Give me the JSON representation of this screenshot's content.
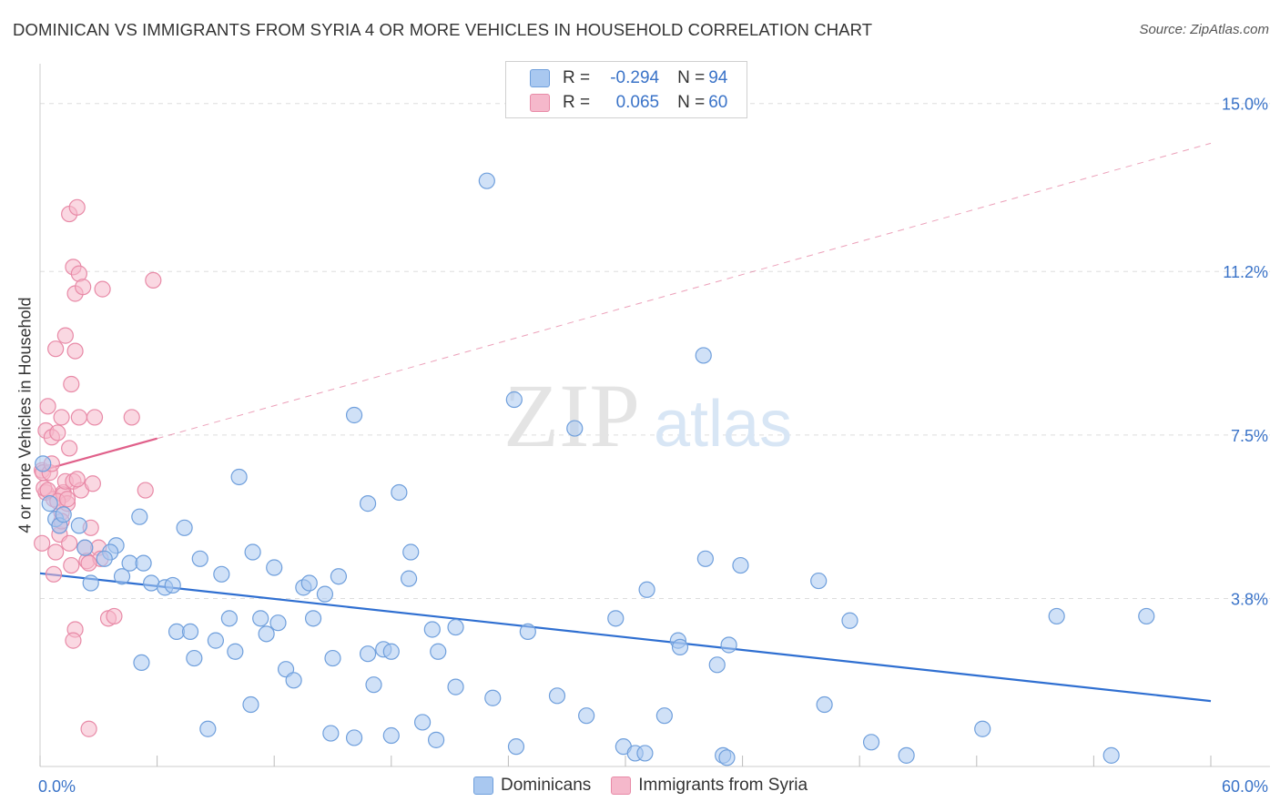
{
  "title": "DOMINICAN VS IMMIGRANTS FROM SYRIA 4 OR MORE VEHICLES IN HOUSEHOLD CORRELATION CHART",
  "source": "Source: ZipAtlas.com",
  "watermark": {
    "zip": "ZIP",
    "atlas": "atlas"
  },
  "legend_box": [
    {
      "r_label": "R =",
      "r_value": "-0.294",
      "n_label": "N =",
      "n_value": "94",
      "color": "#a9c8f0"
    },
    {
      "r_label": "R =",
      "r_value": "0.065",
      "n_label": "N =",
      "n_value": "60",
      "color": "#f5b8cb"
    }
  ],
  "bottom_legend": [
    {
      "label": "Dominicans",
      "color": "#a9c8f0"
    },
    {
      "label": "Immigrants from Syria",
      "color": "#f5b8cb"
    }
  ],
  "colors": {
    "blue_fill": "#a9c8f0",
    "blue_stroke": "#6f9fdc",
    "blue_line": "#2f6fd1",
    "pink_fill": "#f5b8cb",
    "pink_stroke": "#e88aa7",
    "pink_line": "#e0608a",
    "grid": "#dddddd",
    "axis_text": "#3a73c8"
  },
  "chart_data": {
    "type": "scatter",
    "title": "DOMINICAN VS IMMIGRANTS FROM SYRIA 4 OR MORE VEHICLES IN HOUSEHOLD CORRELATION CHART",
    "xlabel": "",
    "ylabel": "4 or more Vehicles in Household",
    "xlim": [
      0,
      60
    ],
    "ylim": [
      0,
      15.9
    ],
    "x_tick_labels": [
      "0.0%",
      "60.0%"
    ],
    "y_ticks": [
      3.8,
      7.5,
      11.2,
      15.0
    ],
    "y_tick_labels": [
      "3.8%",
      "7.5%",
      "11.2%",
      "15.0%"
    ],
    "grid": "horizontal dashed",
    "legend_placement": "top-center",
    "series": [
      {
        "name": "Dominicans",
        "r": -0.294,
        "n": 94,
        "trend": {
          "x": [
            0,
            60
          ],
          "y": [
            4.37,
            1.48
          ],
          "style": "solid"
        },
        "points": [
          [
            0.15,
            6.85
          ],
          [
            0.5,
            5.95
          ],
          [
            0.8,
            5.6
          ],
          [
            1.0,
            5.45
          ],
          [
            2.0,
            5.45
          ],
          [
            1.2,
            5.7
          ],
          [
            2.3,
            4.95
          ],
          [
            3.9,
            5.0
          ],
          [
            3.6,
            4.85
          ],
          [
            3.3,
            4.7
          ],
          [
            2.6,
            4.15
          ],
          [
            4.2,
            4.3
          ],
          [
            4.6,
            4.6
          ],
          [
            5.3,
            4.6
          ],
          [
            5.1,
            5.65
          ],
          [
            5.7,
            4.15
          ],
          [
            6.4,
            4.05
          ],
          [
            6.8,
            4.1
          ],
          [
            7.4,
            5.4
          ],
          [
            8.2,
            4.7
          ],
          [
            9.3,
            4.35
          ],
          [
            10.2,
            6.55
          ],
          [
            10.9,
            4.85
          ],
          [
            12.0,
            4.5
          ],
          [
            13.5,
            4.05
          ],
          [
            13.8,
            4.15
          ],
          [
            14.6,
            3.9
          ],
          [
            15.3,
            4.3
          ],
          [
            16.1,
            7.95
          ],
          [
            16.8,
            5.95
          ],
          [
            18.4,
            6.2
          ],
          [
            19.0,
            4.85
          ],
          [
            18.9,
            4.25
          ],
          [
            22.9,
            13.25
          ],
          [
            24.3,
            8.3
          ],
          [
            27.4,
            7.65
          ],
          [
            31.1,
            4.0
          ],
          [
            34.0,
            9.3
          ],
          [
            34.1,
            4.7
          ],
          [
            35.9,
            4.55
          ],
          [
            39.9,
            4.2
          ],
          [
            7.0,
            3.05
          ],
          [
            7.7,
            3.05
          ],
          [
            9.0,
            2.85
          ],
          [
            9.7,
            3.35
          ],
          [
            10.0,
            2.6
          ],
          [
            11.6,
            3.0
          ],
          [
            11.3,
            3.35
          ],
          [
            12.2,
            3.25
          ],
          [
            12.6,
            2.2
          ],
          [
            13.0,
            1.95
          ],
          [
            14.0,
            3.35
          ],
          [
            15.0,
            2.45
          ],
          [
            16.8,
            2.55
          ],
          [
            17.6,
            2.65
          ],
          [
            20.1,
            3.1
          ],
          [
            20.4,
            2.6
          ],
          [
            21.3,
            3.15
          ],
          [
            25.0,
            3.05
          ],
          [
            29.5,
            3.35
          ],
          [
            32.7,
            2.85
          ],
          [
            32.8,
            2.7
          ],
          [
            35.3,
            2.75
          ],
          [
            41.5,
            3.3
          ],
          [
            52.1,
            3.4
          ],
          [
            56.7,
            3.4
          ],
          [
            5.2,
            2.35
          ],
          [
            7.9,
            2.45
          ],
          [
            8.6,
            0.85
          ],
          [
            10.8,
            1.4
          ],
          [
            14.9,
            0.75
          ],
          [
            17.1,
            1.85
          ],
          [
            16.1,
            0.65
          ],
          [
            18.0,
            0.7
          ],
          [
            19.6,
            1.0
          ],
          [
            20.3,
            0.6
          ],
          [
            21.3,
            1.8
          ],
          [
            23.2,
            1.55
          ],
          [
            24.4,
            0.45
          ],
          [
            26.5,
            1.6
          ],
          [
            28.0,
            1.15
          ],
          [
            29.9,
            0.45
          ],
          [
            30.5,
            0.3
          ],
          [
            31.0,
            0.3
          ],
          [
            32.0,
            1.15
          ],
          [
            34.7,
            2.3
          ],
          [
            35.0,
            0.25
          ],
          [
            35.2,
            0.2
          ],
          [
            40.2,
            1.4
          ],
          [
            42.6,
            0.55
          ],
          [
            44.4,
            0.25
          ],
          [
            48.3,
            0.85
          ],
          [
            54.9,
            0.25
          ],
          [
            18.0,
            2.6
          ]
        ]
      },
      {
        "name": "Immigrants from Syria",
        "r": 0.065,
        "n": 60,
        "trend": {
          "x": [
            0,
            6.0
          ],
          "y": [
            6.69,
            7.42
          ],
          "style": "solid",
          "extended": {
            "x": [
              6.0,
              60
            ],
            "y": [
              7.42,
              14.1
            ],
            "style": "dashed"
          }
        },
        "points": [
          [
            0.1,
            6.7
          ],
          [
            0.15,
            6.65
          ],
          [
            0.1,
            5.05
          ],
          [
            0.3,
            6.2
          ],
          [
            0.3,
            7.6
          ],
          [
            0.4,
            8.15
          ],
          [
            0.5,
            6.65
          ],
          [
            0.6,
            7.45
          ],
          [
            0.7,
            6.05
          ],
          [
            0.7,
            4.35
          ],
          [
            0.8,
            9.45
          ],
          [
            0.8,
            4.85
          ],
          [
            0.9,
            7.55
          ],
          [
            1.0,
            5.25
          ],
          [
            1.0,
            5.45
          ],
          [
            1.1,
            5.75
          ],
          [
            1.1,
            7.9
          ],
          [
            1.2,
            6.2
          ],
          [
            1.2,
            6.15
          ],
          [
            1.3,
            6.45
          ],
          [
            1.3,
            9.75
          ],
          [
            1.4,
            5.95
          ],
          [
            1.5,
            5.05
          ],
          [
            1.5,
            7.2
          ],
          [
            1.6,
            8.65
          ],
          [
            1.5,
            12.5
          ],
          [
            1.6,
            4.55
          ],
          [
            1.7,
            6.45
          ],
          [
            1.7,
            11.3
          ],
          [
            1.8,
            3.1
          ],
          [
            1.7,
            2.85
          ],
          [
            1.8,
            9.4
          ],
          [
            1.8,
            10.7
          ],
          [
            1.9,
            12.65
          ],
          [
            2.0,
            7.9
          ],
          [
            2.0,
            11.15
          ],
          [
            2.1,
            6.25
          ],
          [
            2.2,
            10.85
          ],
          [
            2.3,
            4.95
          ],
          [
            2.4,
            4.65
          ],
          [
            2.5,
            0.85
          ],
          [
            2.6,
            5.4
          ],
          [
            2.7,
            6.4
          ],
          [
            2.8,
            7.9
          ],
          [
            3.0,
            4.95
          ],
          [
            3.1,
            4.7
          ],
          [
            3.2,
            10.8
          ],
          [
            3.5,
            3.35
          ],
          [
            3.8,
            3.4
          ],
          [
            4.7,
            7.9
          ],
          [
            5.4,
            6.25
          ],
          [
            5.8,
            11.0
          ],
          [
            0.2,
            6.3
          ],
          [
            0.9,
            6.0
          ],
          [
            1.1,
            5.55
          ],
          [
            1.4,
            6.05
          ],
          [
            0.4,
            6.25
          ],
          [
            1.9,
            6.5
          ],
          [
            2.5,
            4.6
          ],
          [
            0.6,
            6.85
          ]
        ]
      }
    ]
  }
}
